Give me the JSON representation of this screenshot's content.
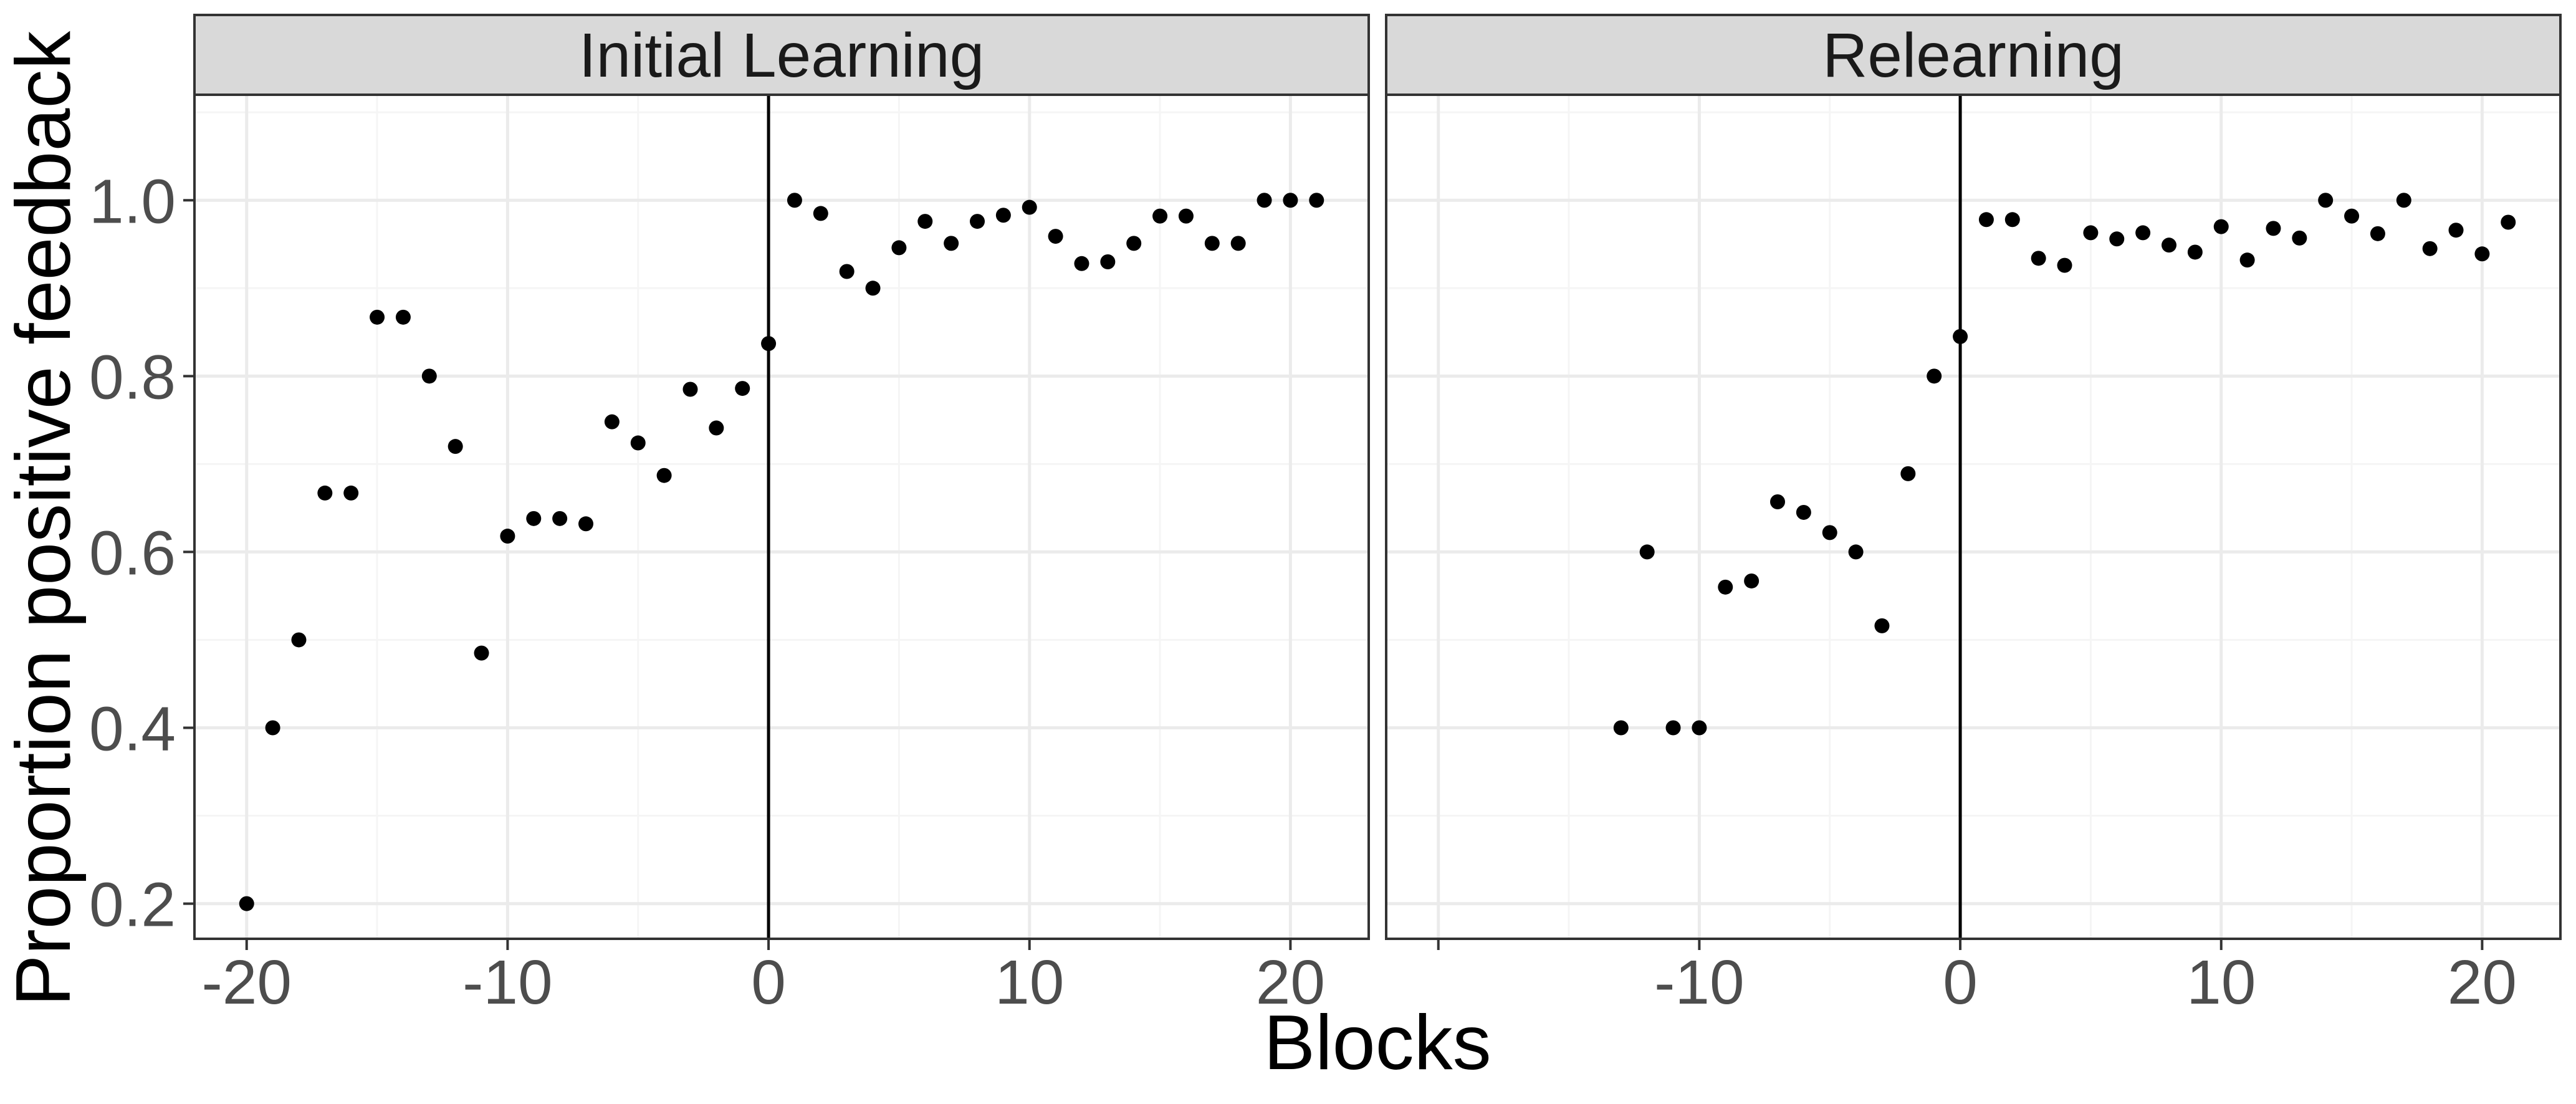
{
  "colors": {
    "background": "#ffffff",
    "panel_border": "#333333",
    "strip_fill": "#d9d9d9",
    "grid_major": "#ebebeb",
    "grid_minor": "#f5f5f5",
    "point": "#000000",
    "vline": "#000000",
    "tick_text": "#4d4d4d"
  },
  "chart_data": {
    "type": "scatter",
    "theme": "ggplot2 theme_bw facets",
    "xlabel": "Blocks",
    "ylabel": "Proportion positive feedback",
    "xlim": [
      -22,
      23
    ],
    "ylim": [
      0.16,
      1.12
    ],
    "x_ticks": [
      -20,
      -10,
      0,
      10,
      20
    ],
    "x_tick_labels": [
      "-20",
      "-10",
      "0",
      "10",
      "20"
    ],
    "y_ticks": [
      0.2,
      0.4,
      0.6,
      0.8,
      1.0
    ],
    "y_tick_labels": [
      "0.2",
      "0.4",
      "0.6",
      "0.8",
      "1.0"
    ],
    "reference_line_x": 0,
    "grid": true,
    "panels": [
      {
        "title": "Initial Learning",
        "x": [
          -20,
          -19,
          -18,
          -17,
          -16,
          -15,
          -14,
          -13,
          -12,
          -11,
          -10,
          -9,
          -8,
          -7,
          -6,
          -5,
          -4,
          -3,
          -2,
          -1,
          0,
          1,
          2,
          3,
          4,
          5,
          6,
          7,
          8,
          9,
          10,
          11,
          12,
          13,
          14,
          15,
          16,
          17,
          18,
          19,
          20,
          21
        ],
        "y": [
          0.2,
          0.4,
          0.5,
          0.667,
          0.667,
          0.867,
          0.867,
          0.8,
          0.72,
          0.485,
          0.618,
          0.638,
          0.638,
          0.632,
          0.748,
          0.724,
          0.687,
          0.785,
          0.741,
          0.786,
          0.837,
          1.0,
          0.985,
          0.919,
          0.9,
          0.946,
          0.976,
          0.951,
          0.976,
          0.983,
          0.992,
          0.959,
          0.928,
          0.93,
          0.951,
          0.982,
          0.982,
          0.951,
          0.951,
          1.0,
          1.0,
          1.0
        ]
      },
      {
        "title": "Relearning",
        "x": [
          -13,
          -12,
          -11,
          -10,
          -9,
          -8,
          -7,
          -6,
          -5,
          -4,
          -3,
          -2,
          -1,
          0,
          1,
          2,
          3,
          4,
          5,
          6,
          7,
          8,
          9,
          10,
          11,
          12,
          13,
          14,
          15,
          16,
          17,
          18,
          19,
          20,
          21
        ],
        "y": [
          0.4,
          0.6,
          0.4,
          0.4,
          0.56,
          0.567,
          0.657,
          0.645,
          0.622,
          0.6,
          0.516,
          0.689,
          0.8,
          0.845,
          0.978,
          0.978,
          0.934,
          0.926,
          0.963,
          0.956,
          0.963,
          0.949,
          0.941,
          0.97,
          0.932,
          0.968,
          0.957,
          1.0,
          0.982,
          0.962,
          1.0,
          0.945,
          0.966,
          0.939,
          0.975
        ]
      }
    ]
  }
}
